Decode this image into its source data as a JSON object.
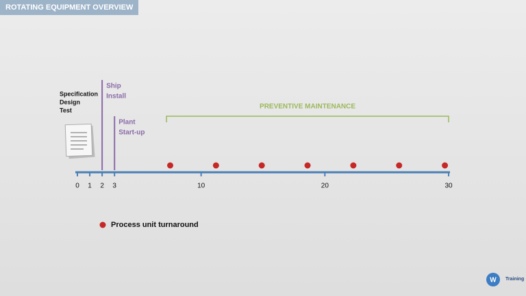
{
  "header": {
    "title": "ROTATING EQUIPMENT OVERVIEW"
  },
  "chart_data": {
    "type": "timeline",
    "xlim": [
      0,
      30
    ],
    "xticks": [
      0,
      1,
      2,
      3,
      10,
      20,
      30
    ],
    "phase_labels": [
      "Specification",
      "Design",
      "Test"
    ],
    "milestones": [
      {
        "x": 2,
        "labels": [
          "Ship",
          "Install"
        ],
        "color": "#8a6aa8"
      },
      {
        "x": 3,
        "labels": [
          "Plant",
          "Start-up"
        ],
        "color": "#8a6aa8"
      }
    ],
    "span": {
      "label": "PREVENTIVE MAINTENANCE",
      "x": [
        7.2,
        30
      ],
      "color": "#9ab85a"
    },
    "axis_color": "#4a7fb5",
    "series": [
      {
        "name": "Process unit turnaround",
        "color": "#c62828",
        "x": [
          7.5,
          11.2,
          14.9,
          18.6,
          22.3,
          26,
          29.7
        ]
      }
    ]
  },
  "logo": {
    "text": "Training"
  }
}
